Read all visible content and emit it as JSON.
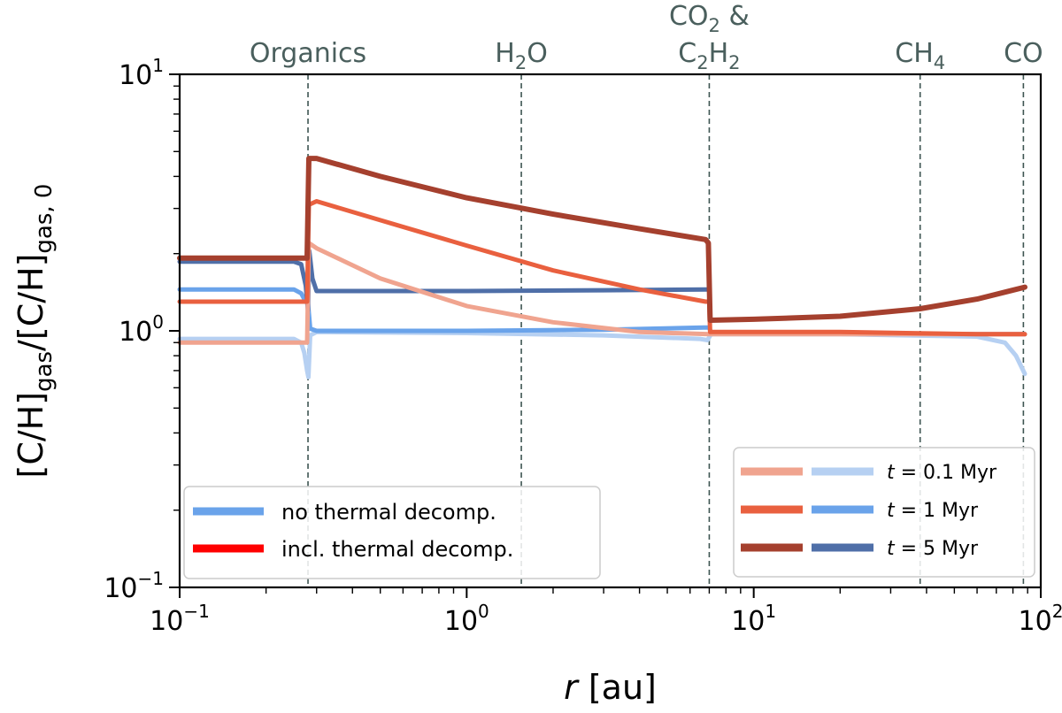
{
  "chart_data": {
    "type": "line",
    "xlabel_var": "r",
    "xlabel_unit": "[au]",
    "ylabel_parts": [
      "[C/H]",
      "gas",
      "/[C/H]",
      "gas, 0"
    ],
    "xscale": "log",
    "yscale": "log",
    "xlim": [
      0.1,
      100
    ],
    "ylim": [
      0.1,
      10
    ],
    "x_ticks": [
      {
        "value": 0.1,
        "base": "10",
        "exp": "−1"
      },
      {
        "value": 1,
        "base": "10",
        "exp": "0"
      },
      {
        "value": 10,
        "base": "10",
        "exp": "1"
      },
      {
        "value": 100,
        "base": "10",
        "exp": "2"
      }
    ],
    "y_ticks": [
      {
        "value": 0.1,
        "base": "10",
        "exp": "−1"
      },
      {
        "value": 1,
        "base": "10",
        "exp": "0"
      },
      {
        "value": 10,
        "base": "10",
        "exp": "1"
      }
    ],
    "snowlines": [
      {
        "r": 0.28,
        "label": [
          {
            "t": "Organics"
          }
        ]
      },
      {
        "r": 1.55,
        "label": [
          {
            "t": "H"
          },
          {
            "t": "2",
            "sub": true
          },
          {
            "t": "O"
          }
        ]
      },
      {
        "r": 7.0,
        "label": [
          {
            "t": "CO"
          },
          {
            "t": "2",
            "sub": true
          },
          {
            "t": " &"
          }
        ],
        "label2": [
          {
            "t": "C"
          },
          {
            "t": "2",
            "sub": true
          },
          {
            "t": "H"
          },
          {
            "t": "2",
            "sub": true
          }
        ]
      },
      {
        "r": 38,
        "label": [
          {
            "t": "CH"
          },
          {
            "t": "4",
            "sub": true
          }
        ]
      },
      {
        "r": 87,
        "label": [
          {
            "t": "CO"
          }
        ]
      }
    ],
    "series": [
      {
        "name": "no thermal decomp., t = 0.1 Myr",
        "color": "#b6d0f2",
        "width": 5,
        "points": [
          [
            0.1,
            0.93
          ],
          [
            0.25,
            0.93
          ],
          [
            0.265,
            0.9
          ],
          [
            0.272,
            0.82
          ],
          [
            0.278,
            0.7
          ],
          [
            0.281,
            0.66
          ],
          [
            0.285,
            0.96
          ],
          [
            0.3,
            0.99
          ],
          [
            1,
            0.98
          ],
          [
            3,
            0.96
          ],
          [
            6.5,
            0.93
          ],
          [
            6.9,
            0.92
          ],
          [
            7.1,
            0.97
          ],
          [
            20,
            0.97
          ],
          [
            60,
            0.95
          ],
          [
            75,
            0.9
          ],
          [
            82,
            0.8
          ],
          [
            88,
            0.68
          ]
        ]
      },
      {
        "name": "no thermal decomp., t = 1 Myr",
        "color": "#6aa3ea",
        "width": 5,
        "points": [
          [
            0.1,
            1.45
          ],
          [
            0.25,
            1.45
          ],
          [
            0.265,
            1.4
          ],
          [
            0.275,
            1.3
          ],
          [
            0.28,
            1.28
          ],
          [
            0.285,
            1.02
          ],
          [
            0.3,
            1.0
          ],
          [
            1,
            1.0
          ],
          [
            3,
            1.01
          ],
          [
            6.7,
            1.03
          ],
          [
            7.0,
            1.03
          ],
          [
            7.1,
            0.98
          ],
          [
            20,
            0.98
          ],
          [
            60,
            0.97
          ],
          [
            88,
            0.97
          ]
        ]
      },
      {
        "name": "no thermal decomp., t = 5 Myr",
        "color": "#4f6fa8",
        "width": 5,
        "points": [
          [
            0.1,
            1.86
          ],
          [
            0.25,
            1.86
          ],
          [
            0.265,
            1.82
          ],
          [
            0.275,
            1.5
          ],
          [
            0.28,
            1.2
          ],
          [
            0.283,
            2.05
          ],
          [
            0.29,
            1.6
          ],
          [
            0.3,
            1.43
          ],
          [
            1,
            1.43
          ],
          [
            3,
            1.44
          ],
          [
            6.8,
            1.45
          ],
          [
            7.0,
            1.45
          ],
          [
            7.05,
            1.1
          ],
          [
            10,
            1.11
          ],
          [
            20,
            1.14
          ],
          [
            38,
            1.22
          ],
          [
            60,
            1.33
          ],
          [
            88,
            1.48
          ]
        ]
      },
      {
        "name": "incl. thermal decomp., t = 0.1 Myr",
        "color": "#f0a48f",
        "width": 5,
        "points": [
          [
            0.1,
            0.9
          ],
          [
            0.278,
            0.9
          ],
          [
            0.282,
            2.2
          ],
          [
            0.3,
            2.1
          ],
          [
            0.5,
            1.6
          ],
          [
            1,
            1.25
          ],
          [
            2,
            1.08
          ],
          [
            4,
            0.99
          ],
          [
            7,
            0.97
          ],
          [
            20,
            0.97
          ],
          [
            60,
            0.97
          ],
          [
            88,
            0.97
          ]
        ]
      },
      {
        "name": "incl. thermal decomp., t = 1 Myr",
        "color": "#e9603f",
        "width": 5,
        "points": [
          [
            0.1,
            1.3
          ],
          [
            0.278,
            1.3
          ],
          [
            0.282,
            3.1
          ],
          [
            0.3,
            3.2
          ],
          [
            0.5,
            2.7
          ],
          [
            1,
            2.15
          ],
          [
            2,
            1.72
          ],
          [
            4,
            1.45
          ],
          [
            6.8,
            1.3
          ],
          [
            7.0,
            1.3
          ],
          [
            7.05,
            0.99
          ],
          [
            20,
            0.99
          ],
          [
            60,
            0.97
          ],
          [
            88,
            0.97
          ]
        ]
      },
      {
        "name": "incl. thermal decomp., t = 5 Myr",
        "color": "#a5402e",
        "width": 6,
        "points": [
          [
            0.1,
            1.92
          ],
          [
            0.278,
            1.92
          ],
          [
            0.282,
            4.7
          ],
          [
            0.3,
            4.7
          ],
          [
            0.5,
            4.0
          ],
          [
            1,
            3.3
          ],
          [
            2,
            2.85
          ],
          [
            4,
            2.5
          ],
          [
            6.8,
            2.27
          ],
          [
            6.95,
            2.2
          ],
          [
            7.05,
            1.1
          ],
          [
            10,
            1.11
          ],
          [
            20,
            1.14
          ],
          [
            38,
            1.22
          ],
          [
            60,
            1.33
          ],
          [
            88,
            1.48
          ]
        ]
      }
    ],
    "legend_left": [
      {
        "label": "no thermal decomp.",
        "color": "#6aa3ea"
      },
      {
        "label": "incl. thermal decomp.",
        "color": "#ff0000"
      }
    ],
    "legend_right": [
      {
        "var": "t",
        "label": " = 0.1 Myr",
        "color_red": "#f0a48f",
        "color_blue": "#b6d0f2"
      },
      {
        "var": "t",
        "label": " = 1 Myr",
        "color_red": "#e9603f",
        "color_blue": "#6aa3ea"
      },
      {
        "var": "t",
        "label": " = 5 Myr",
        "color_red": "#a5402e",
        "color_blue": "#4f6fa8"
      }
    ],
    "legend_placement_left": "lower-left",
    "legend_placement_right": "lower-right",
    "grid": false
  }
}
